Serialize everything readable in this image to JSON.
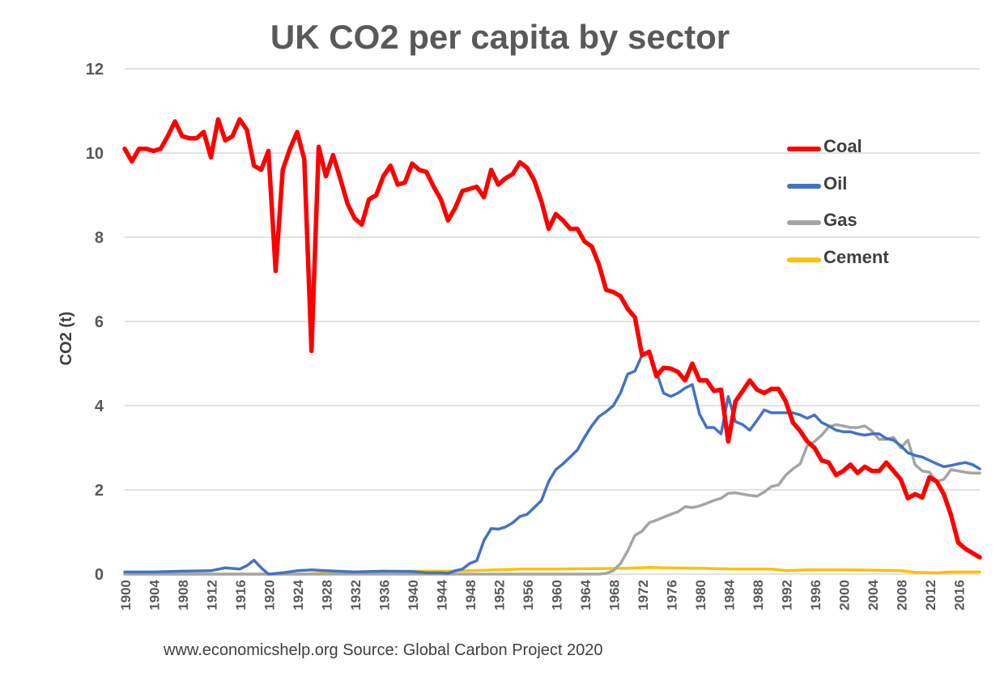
{
  "chart_data": {
    "type": "line",
    "title": "UK CO2 per capita by sector",
    "ylabel": "CO2 (t)",
    "xlabel": "",
    "ylim": [
      0,
      12
    ],
    "yticks": [
      0,
      2,
      4,
      6,
      8,
      10,
      12
    ],
    "xlim": [
      1900,
      2019
    ],
    "xticks": [
      1900,
      1904,
      1908,
      1912,
      1916,
      1920,
      1924,
      1928,
      1932,
      1936,
      1940,
      1944,
      1948,
      1952,
      1956,
      1960,
      1964,
      1968,
      1972,
      1976,
      1980,
      1984,
      1988,
      1992,
      1996,
      2000,
      2004,
      2008,
      2012,
      2016
    ],
    "grid": true,
    "legend_position": "right",
    "source_note": "www.economicshelp.org  Source: Global Carbon Project 2020",
    "series": [
      {
        "name": "Coal",
        "color": "#ff0000",
        "x": [
          1900,
          1901,
          1902,
          1903,
          1904,
          1905,
          1906,
          1907,
          1908,
          1909,
          1910,
          1911,
          1912,
          1913,
          1914,
          1915,
          1916,
          1917,
          1918,
          1919,
          1920,
          1921,
          1922,
          1923,
          1924,
          1925,
          1926,
          1927,
          1928,
          1929,
          1930,
          1931,
          1932,
          1933,
          1934,
          1935,
          1936,
          1937,
          1938,
          1939,
          1940,
          1941,
          1942,
          1943,
          1944,
          1945,
          1946,
          1947,
          1948,
          1949,
          1950,
          1951,
          1952,
          1953,
          1954,
          1955,
          1956,
          1957,
          1958,
          1959,
          1960,
          1961,
          1962,
          1963,
          1964,
          1965,
          1966,
          1967,
          1968,
          1969,
          1970,
          1971,
          1972,
          1973,
          1974,
          1975,
          1976,
          1977,
          1978,
          1979,
          1980,
          1981,
          1982,
          1983,
          1984,
          1985,
          1986,
          1987,
          1988,
          1989,
          1990,
          1991,
          1992,
          1993,
          1994,
          1995,
          1996,
          1997,
          1998,
          1999,
          2000,
          2001,
          2002,
          2003,
          2004,
          2005,
          2006,
          2007,
          2008,
          2009,
          2010,
          2011,
          2012,
          2013,
          2014,
          2015,
          2016,
          2017,
          2018,
          2019
        ],
        "values": [
          10.1,
          9.8,
          10.1,
          10.1,
          10.05,
          10.1,
          10.4,
          10.75,
          10.4,
          10.35,
          10.35,
          10.5,
          9.9,
          10.8,
          10.3,
          10.4,
          10.8,
          10.55,
          9.7,
          9.6,
          10.05,
          7.2,
          9.6,
          10.1,
          10.5,
          9.85,
          5.3,
          10.15,
          9.45,
          9.95,
          9.4,
          8.8,
          8.45,
          8.3,
          8.9,
          9.0,
          9.45,
          9.7,
          9.25,
          9.3,
          9.75,
          9.6,
          9.55,
          9.2,
          8.9,
          8.4,
          8.7,
          9.1,
          9.15,
          9.2,
          8.95,
          9.6,
          9.25,
          9.4,
          9.5,
          9.78,
          9.65,
          9.35,
          8.85,
          8.2,
          8.55,
          8.4,
          8.2,
          8.2,
          7.9,
          7.78,
          7.35,
          6.75,
          6.7,
          6.6,
          6.3,
          6.1,
          5.2,
          5.28,
          4.7,
          4.9,
          4.88,
          4.8,
          4.6,
          5.0,
          4.6,
          4.6,
          4.35,
          4.38,
          3.15,
          4.1,
          4.35,
          4.6,
          4.38,
          4.3,
          4.4,
          4.4,
          4.1,
          3.6,
          3.4,
          3.15,
          3.0,
          2.7,
          2.65,
          2.35,
          2.45,
          2.6,
          2.4,
          2.55,
          2.45,
          2.45,
          2.65,
          2.45,
          2.25,
          1.8,
          1.9,
          1.82,
          2.3,
          2.2,
          1.9,
          1.4,
          0.75,
          0.6,
          0.5,
          0.4
        ]
      },
      {
        "name": "Oil",
        "color": "#4472c4",
        "x": [
          1900,
          1904,
          1908,
          1912,
          1914,
          1916,
          1917,
          1918,
          1919,
          1920,
          1922,
          1924,
          1926,
          1928,
          1932,
          1936,
          1940,
          1942,
          1944,
          1945,
          1946,
          1947,
          1948,
          1949,
          1950,
          1951,
          1952,
          1953,
          1954,
          1955,
          1956,
          1957,
          1958,
          1959,
          1960,
          1961,
          1962,
          1963,
          1964,
          1965,
          1966,
          1967,
          1968,
          1969,
          1970,
          1971,
          1972,
          1973,
          1974,
          1975,
          1976,
          1977,
          1978,
          1979,
          1980,
          1981,
          1982,
          1983,
          1984,
          1985,
          1986,
          1987,
          1988,
          1989,
          1990,
          1991,
          1992,
          1993,
          1994,
          1995,
          1996,
          1997,
          1998,
          1999,
          2000,
          2001,
          2002,
          2003,
          2004,
          2005,
          2006,
          2007,
          2008,
          2009,
          2010,
          2011,
          2012,
          2013,
          2014,
          2015,
          2016,
          2017,
          2018,
          2019
        ],
        "values": [
          0.05,
          0.05,
          0.07,
          0.08,
          0.15,
          0.12,
          0.2,
          0.33,
          0.15,
          0.0,
          0.03,
          0.08,
          0.1,
          0.08,
          0.05,
          0.07,
          0.06,
          0.03,
          0.03,
          0.02,
          0.08,
          0.12,
          0.25,
          0.32,
          0.8,
          1.08,
          1.07,
          1.12,
          1.22,
          1.37,
          1.42,
          1.58,
          1.75,
          2.2,
          2.48,
          2.62,
          2.78,
          2.95,
          3.25,
          3.52,
          3.74,
          3.86,
          4.0,
          4.3,
          4.75,
          4.82,
          5.2,
          5.25,
          4.8,
          4.3,
          4.22,
          4.3,
          4.42,
          4.5,
          3.8,
          3.48,
          3.48,
          3.33,
          4.22,
          3.62,
          3.55,
          3.42,
          3.65,
          3.9,
          3.83,
          3.83,
          3.83,
          3.83,
          3.78,
          3.7,
          3.78,
          3.6,
          3.52,
          3.42,
          3.38,
          3.38,
          3.33,
          3.3,
          3.33,
          3.33,
          3.22,
          3.18,
          3.05,
          2.88,
          2.82,
          2.78,
          2.7,
          2.62,
          2.55,
          2.58,
          2.62,
          2.65,
          2.6,
          2.5
        ]
      },
      {
        "name": "Gas",
        "color": "#a5a5a5",
        "x": [
          1900,
          1960,
          1966,
          1967,
          1968,
          1969,
          1970,
          1971,
          1972,
          1973,
          1974,
          1975,
          1976,
          1977,
          1978,
          1979,
          1980,
          1981,
          1982,
          1983,
          1984,
          1985,
          1986,
          1987,
          1988,
          1989,
          1990,
          1991,
          1992,
          1993,
          1994,
          1995,
          1996,
          1997,
          1998,
          1999,
          2000,
          2001,
          2002,
          2003,
          2004,
          2005,
          2006,
          2007,
          2008,
          2009,
          2010,
          2011,
          2012,
          2013,
          2014,
          2015,
          2016,
          2017,
          2018,
          2019
        ],
        "values": [
          0.0,
          0.0,
          0.0,
          0.02,
          0.08,
          0.25,
          0.55,
          0.92,
          1.02,
          1.22,
          1.28,
          1.35,
          1.42,
          1.48,
          1.6,
          1.58,
          1.62,
          1.68,
          1.75,
          1.8,
          1.92,
          1.93,
          1.9,
          1.87,
          1.85,
          1.95,
          2.08,
          2.12,
          2.35,
          2.5,
          2.62,
          3.05,
          3.15,
          3.3,
          3.5,
          3.55,
          3.52,
          3.48,
          3.48,
          3.52,
          3.4,
          3.2,
          3.2,
          3.25,
          3.0,
          3.18,
          2.6,
          2.45,
          2.42,
          2.2,
          2.25,
          2.48,
          2.45,
          2.42,
          2.4,
          2.4
        ]
      },
      {
        "name": "Cement",
        "color": "#ffc000",
        "x": [
          1900,
          1925,
          1927,
          1930,
          1935,
          1940,
          1945,
          1950,
          1955,
          1960,
          1965,
          1970,
          1973,
          1975,
          1980,
          1985,
          1990,
          1992,
          1995,
          2000,
          2005,
          2008,
          2010,
          2013,
          2015,
          2019
        ],
        "values": [
          0.0,
          0.0,
          0.02,
          0.05,
          0.06,
          0.07,
          0.07,
          0.09,
          0.12,
          0.12,
          0.13,
          0.14,
          0.16,
          0.15,
          0.14,
          0.12,
          0.12,
          0.08,
          0.1,
          0.1,
          0.09,
          0.08,
          0.04,
          0.03,
          0.05,
          0.05
        ]
      }
    ]
  }
}
